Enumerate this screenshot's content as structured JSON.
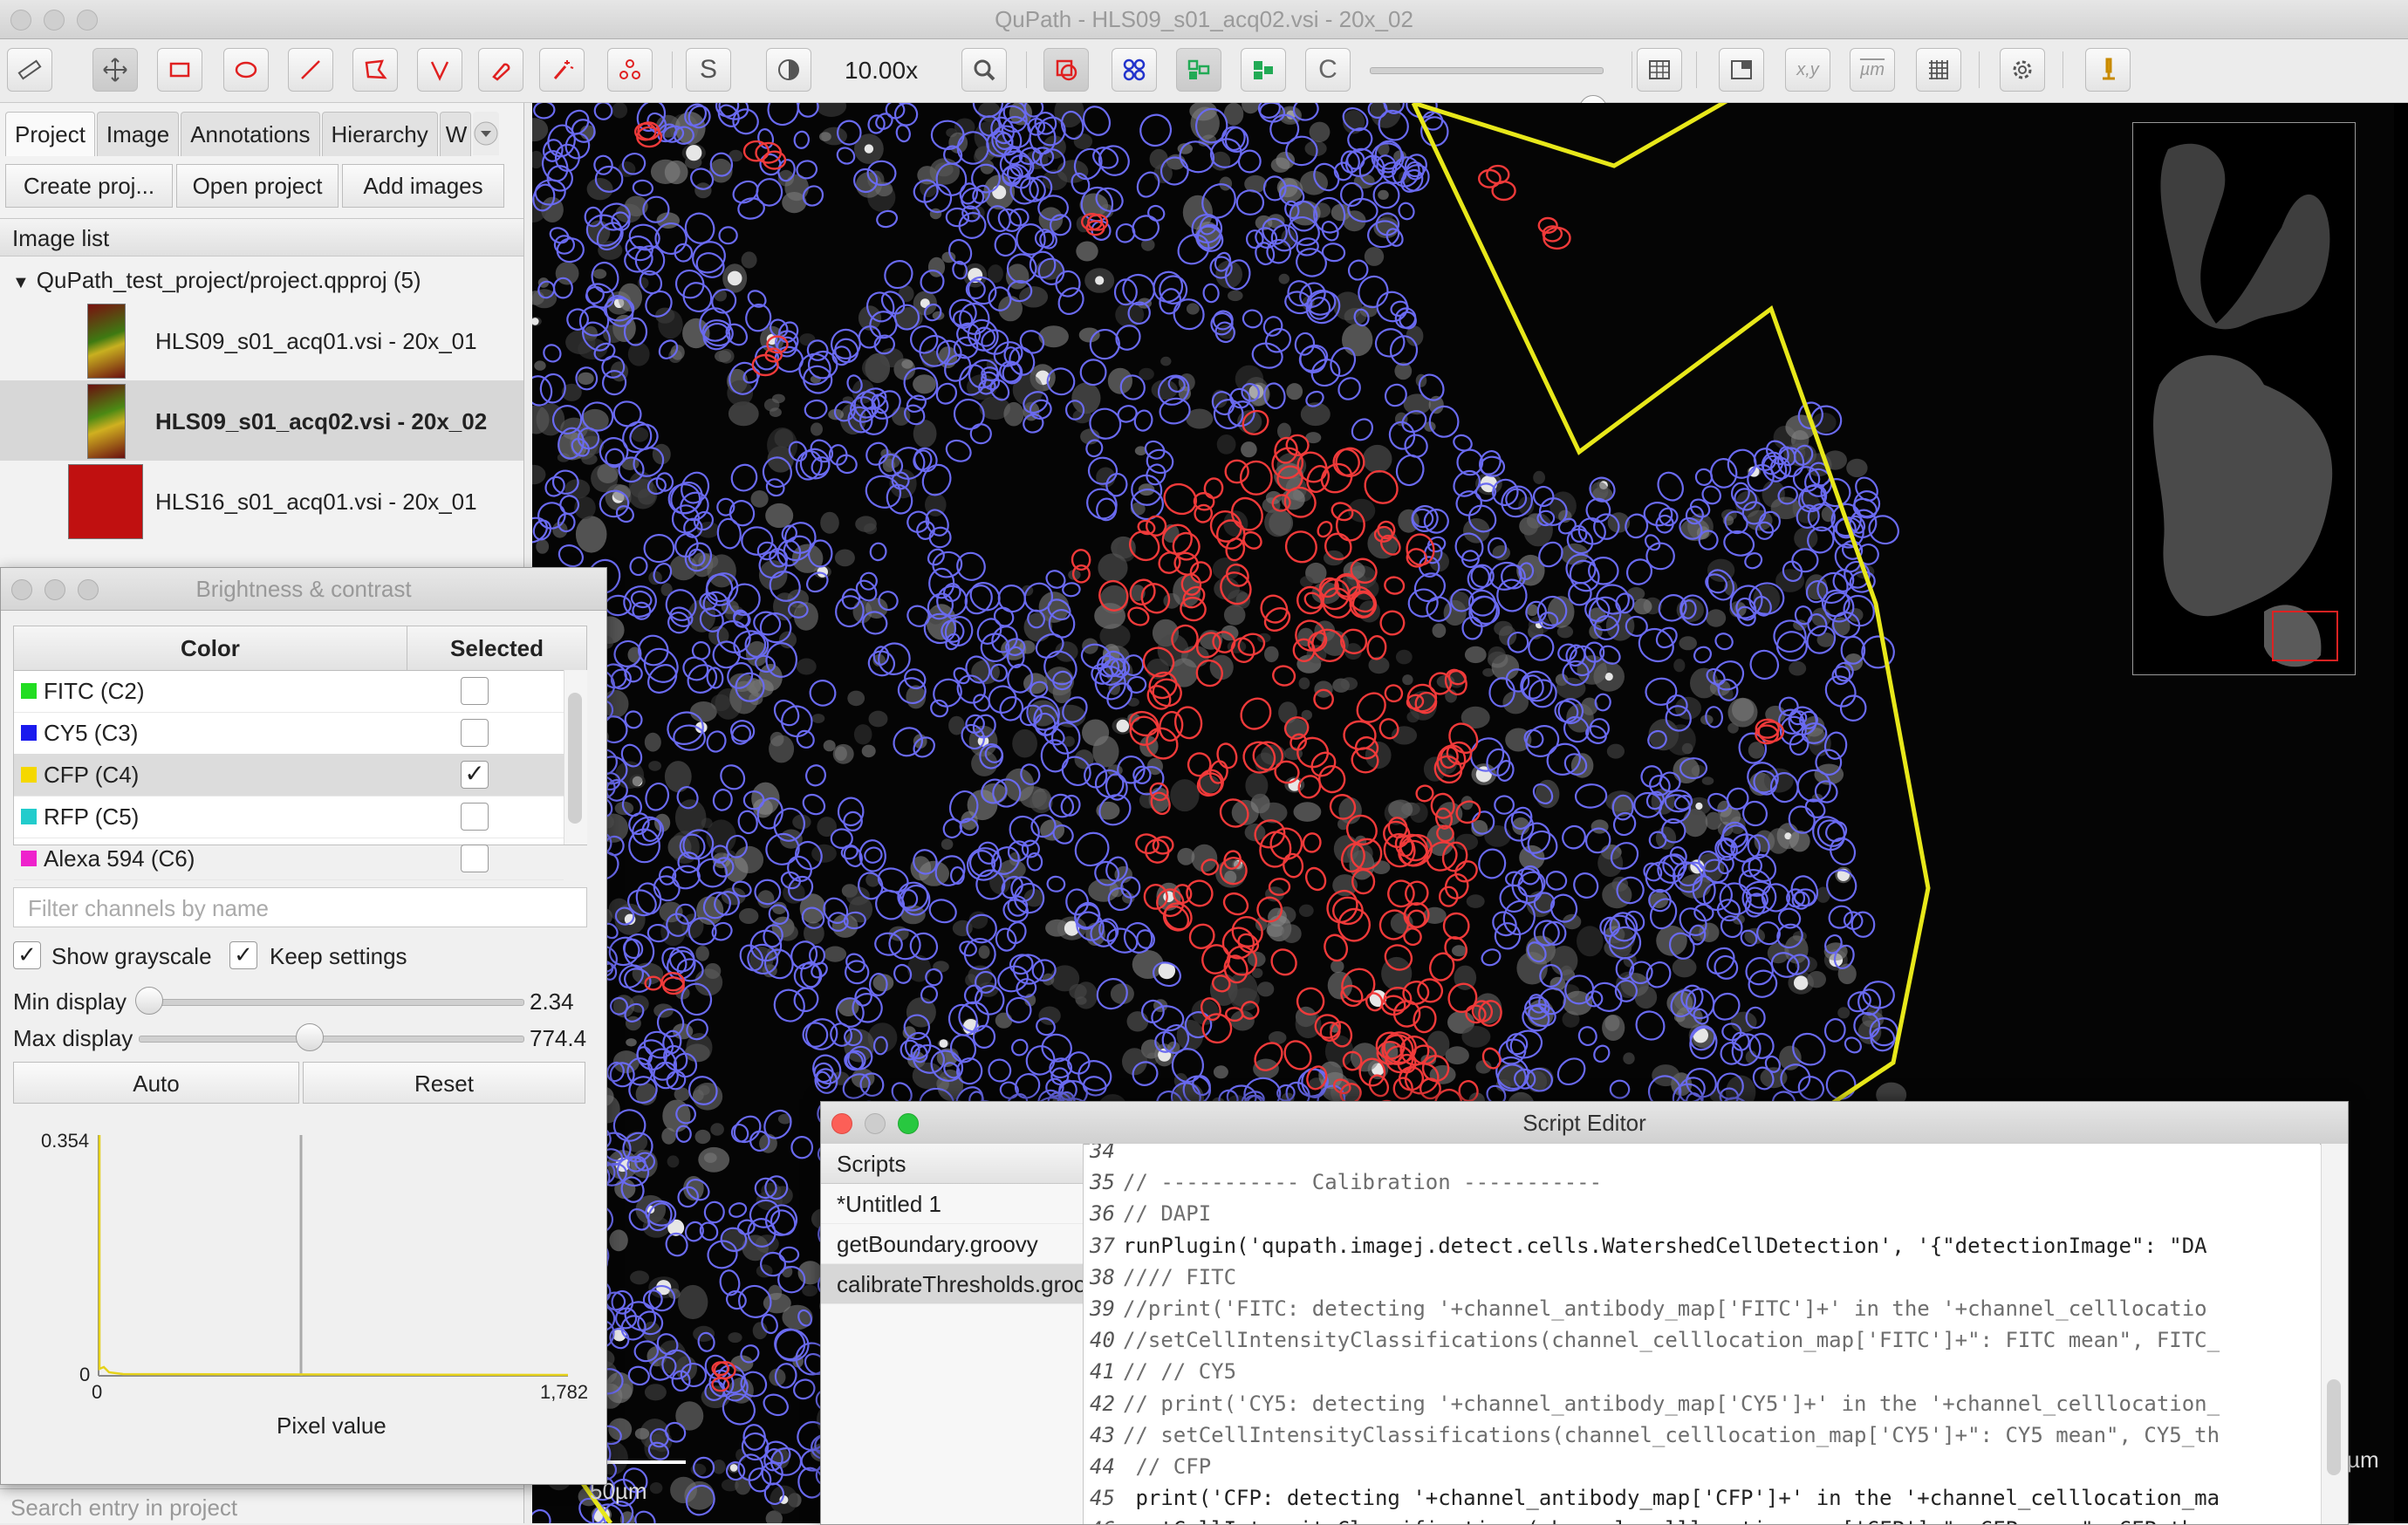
{
  "window": {
    "title": "QuPath - HLS09_s01_acq02.vsi - 20x_02"
  },
  "toolbar": {
    "zoom": "10.00x",
    "s_label": "S",
    "c_label": "C",
    "xy_label": "x,y",
    "um_label": "µm"
  },
  "left_panel": {
    "tabs": [
      "Project",
      "Image",
      "Annotations",
      "Hierarchy",
      "W"
    ],
    "buttons": {
      "create": "Create proj...",
      "open": "Open project",
      "add": "Add images"
    },
    "image_list_title": "Image list",
    "project_node": "QuPath_test_project/project.qpproj (5)",
    "images": [
      "HLS09_s01_acq01.vsi - 20x_01",
      "HLS09_s01_acq02.vsi - 20x_02",
      "HLS16_s01_acq01.vsi - 20x_01"
    ],
    "search_placeholder": "Search entry in project"
  },
  "brightness": {
    "title": "Brightness & contrast",
    "col_color": "Color",
    "col_selected": "Selected",
    "channels": [
      {
        "name": "FITC (C2)",
        "color": "#22dd22",
        "selected": false
      },
      {
        "name": "CY5 (C3)",
        "color": "#1a1aee",
        "selected": false
      },
      {
        "name": "CFP (C4)",
        "color": "#f5d800",
        "selected": true
      },
      {
        "name": "RFP (C5)",
        "color": "#22cccc",
        "selected": false
      },
      {
        "name": "Alexa 594 (C6)",
        "color": "#ee22cc",
        "selected": false
      }
    ],
    "filter_placeholder": "Filter channels by name",
    "show_grayscale": "Show grayscale",
    "keep_settings": "Keep settings",
    "min_label": "Min display",
    "min_value": "2.34",
    "max_label": "Max display",
    "max_value": "774.4",
    "auto": "Auto",
    "reset": "Reset",
    "hist_ymax": "0.354",
    "hist_y0": "0",
    "hist_x0": "0",
    "hist_xmax": "1,782",
    "hist_xlabel": "Pixel value"
  },
  "viewer": {
    "scale_label": "50µm",
    "right_unit": "µm"
  },
  "script_editor": {
    "title": "Script Editor",
    "scripts_header": "Scripts",
    "scripts": [
      "*Untitled 1",
      "getBoundary.groovy",
      "calibrateThresholds.groo"
    ],
    "lines": [
      {
        "n": "34",
        "t": ""
      },
      {
        "n": "35",
        "t": "// ----------- Calibration -----------"
      },
      {
        "n": "36",
        "t": "// DAPI"
      },
      {
        "n": "37",
        "t": "runPlugin('qupath.imagej.detect.cells.WatershedCellDetection', '{\"detectionImage\": \"DA"
      },
      {
        "n": "38",
        "t": "//// FITC"
      },
      {
        "n": "39",
        "t": "//print('FITC: detecting '+channel_antibody_map['FITC']+' in the '+channel_celllocatio"
      },
      {
        "n": "40",
        "t": "//setCellIntensityClassifications(channel_celllocation_map['FITC']+\": FITC mean\", FITC_"
      },
      {
        "n": "41",
        "t": "// // CY5"
      },
      {
        "n": "42",
        "t": "// print('CY5: detecting '+channel_antibody_map['CY5']+' in the '+channel_celllocation_"
      },
      {
        "n": "43",
        "t": "// setCellIntensityClassifications(channel_celllocation_map['CY5']+\": CY5 mean\", CY5_th"
      },
      {
        "n": "44",
        "t": " // CFP"
      },
      {
        "n": "45",
        "t": " print('CFP: detecting '+channel_antibody_map['CFP']+' in the '+channel_celllocation_ma"
      },
      {
        "n": "46",
        "t": " setCellIntensityClassifications(channel_celllocation_map['CFP']+\": CFP mean\", CFP_thre"
      }
    ]
  }
}
